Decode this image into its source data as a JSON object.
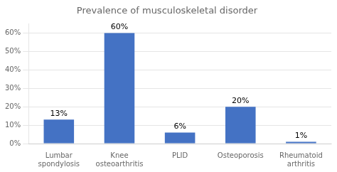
{
  "chart_data": {
    "type": "bar",
    "title": "Prevalence of musculoskeletal disorder",
    "categories": [
      "Lumbar\nspondylosis",
      "Knee\nosteoarthritis",
      "PLID",
      "Osteoporosis",
      "Rheumatoid\narthritis"
    ],
    "values": [
      13,
      60,
      6,
      20,
      1
    ],
    "value_labels": [
      "13%",
      "60%",
      "6%",
      "20%",
      "1%"
    ],
    "data_labels": true,
    "color": "#4472C4",
    "ylim": [
      0,
      65
    ],
    "yticks": [
      {
        "value": 0,
        "label": "0%"
      },
      {
        "value": 10,
        "label": "10%"
      },
      {
        "value": 20,
        "label": "20%"
      },
      {
        "value": 30,
        "label": "30%"
      },
      {
        "value": 40,
        "label": "40%"
      },
      {
        "value": 50,
        "label": "50%"
      },
      {
        "value": 60,
        "label": "60%"
      }
    ],
    "grid": true
  }
}
